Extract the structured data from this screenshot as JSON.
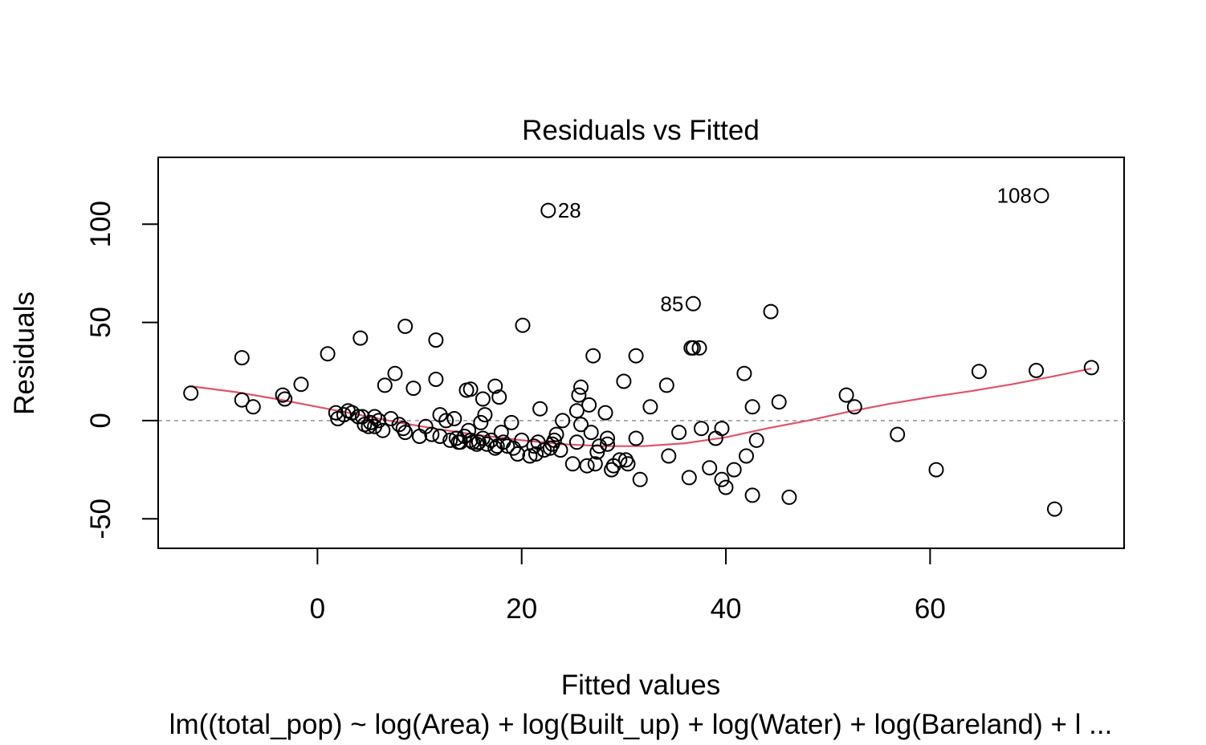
{
  "chart_data": {
    "type": "scatter",
    "title": "Residuals vs Fitted",
    "xlabel": "Fitted values",
    "ylabel": "Residuals",
    "subtitle": "lm((total_pop) ~ log(Area) + log(Built_up) + log(Water) + log(Bareland) + l ...",
    "xlim": [
      -15.6,
      79.0
    ],
    "ylim": [
      -65.0,
      134.0
    ],
    "x_ticks": [
      0,
      20,
      40,
      60
    ],
    "y_ticks": [
      -50,
      0,
      50,
      100
    ],
    "x_tick_labels": [
      "0",
      "20",
      "40",
      "60"
    ],
    "y_tick_labels": [
      "-50",
      "0",
      "50",
      "100"
    ],
    "reference_line_y": 0,
    "point_color": "#000000",
    "smooth_color": "#DF536B",
    "reference_line_color": "#999999",
    "labeled_points": [
      {
        "label": "28",
        "x": 22.6,
        "y": 107
      },
      {
        "label": "85",
        "x": 36.8,
        "y": 59.5
      },
      {
        "label": "108",
        "x": 70.9,
        "y": 114.5
      }
    ],
    "points": [
      [
        -12.4,
        14
      ],
      [
        -7.4,
        32
      ],
      [
        -7.4,
        10.5
      ],
      [
        -6.3,
        7
      ],
      [
        -3.4,
        13
      ],
      [
        -3.2,
        11
      ],
      [
        -1.6,
        18.5
      ],
      [
        1.0,
        34
      ],
      [
        1.8,
        4
      ],
      [
        2.0,
        1
      ],
      [
        2.6,
        3
      ],
      [
        3.0,
        5
      ],
      [
        3.4,
        4
      ],
      [
        4.0,
        2
      ],
      [
        4.2,
        42
      ],
      [
        4.4,
        2
      ],
      [
        4.6,
        -2
      ],
      [
        5.0,
        -3
      ],
      [
        5.2,
        -1
      ],
      [
        5.6,
        2
      ],
      [
        5.6,
        -3
      ],
      [
        6.0,
        0
      ],
      [
        6.4,
        -5
      ],
      [
        6.6,
        18
      ],
      [
        7.2,
        1
      ],
      [
        7.6,
        24
      ],
      [
        8.0,
        -2
      ],
      [
        8.4,
        -4
      ],
      [
        8.6,
        -6
      ],
      [
        8.6,
        48
      ],
      [
        9.4,
        16.5
      ],
      [
        10.0,
        -8
      ],
      [
        10.6,
        -3
      ],
      [
        11.2,
        -7
      ],
      [
        11.6,
        41
      ],
      [
        11.6,
        21
      ],
      [
        12.0,
        3
      ],
      [
        12.0,
        -8
      ],
      [
        12.6,
        0
      ],
      [
        13.0,
        -10
      ],
      [
        13.4,
        1
      ],
      [
        13.6,
        -9
      ],
      [
        13.8,
        -11
      ],
      [
        14.0,
        -11
      ],
      [
        14.4,
        -8
      ],
      [
        14.6,
        15.5
      ],
      [
        14.8,
        -5
      ],
      [
        15.0,
        -10
      ],
      [
        15.0,
        16
      ],
      [
        15.2,
        -11
      ],
      [
        15.6,
        -12
      ],
      [
        15.8,
        -11
      ],
      [
        16.0,
        -1
      ],
      [
        16.2,
        -9
      ],
      [
        16.2,
        11
      ],
      [
        16.4,
        3
      ],
      [
        16.6,
        -12
      ],
      [
        17.0,
        -10
      ],
      [
        17.4,
        -14
      ],
      [
        17.4,
        17.5
      ],
      [
        17.6,
        -13
      ],
      [
        17.8,
        12
      ],
      [
        18.0,
        -6
      ],
      [
        18.2,
        -11
      ],
      [
        18.6,
        -13
      ],
      [
        19.0,
        -1
      ],
      [
        19.2,
        -14
      ],
      [
        19.6,
        -17
      ],
      [
        20.0,
        -10
      ],
      [
        20.1,
        48.5
      ],
      [
        20.8,
        -18
      ],
      [
        21.2,
        -13
      ],
      [
        21.4,
        -17
      ],
      [
        21.6,
        -11
      ],
      [
        21.8,
        6
      ],
      [
        22.2,
        -15
      ],
      [
        22.8,
        -14
      ],
      [
        23.0,
        -12
      ],
      [
        23.2,
        -10
      ],
      [
        23.4,
        -7
      ],
      [
        23.8,
        -15
      ],
      [
        24.0,
        0
      ],
      [
        25.0,
        -22
      ],
      [
        25.4,
        -11
      ],
      [
        25.4,
        5
      ],
      [
        25.6,
        13
      ],
      [
        25.8,
        -2
      ],
      [
        25.8,
        17
      ],
      [
        26.4,
        -23
      ],
      [
        26.6,
        8
      ],
      [
        26.8,
        -6
      ],
      [
        27.0,
        33
      ],
      [
        27.2,
        -22
      ],
      [
        27.4,
        -16
      ],
      [
        27.6,
        -13
      ],
      [
        28.2,
        4
      ],
      [
        28.4,
        -9
      ],
      [
        28.4,
        -12
      ],
      [
        28.8,
        -25
      ],
      [
        29.0,
        -23
      ],
      [
        29.6,
        -20
      ],
      [
        30.0,
        20
      ],
      [
        30.2,
        -20
      ],
      [
        30.4,
        -22
      ],
      [
        31.2,
        -9
      ],
      [
        31.2,
        33
      ],
      [
        31.6,
        -30
      ],
      [
        32.6,
        7
      ],
      [
        34.2,
        18
      ],
      [
        34.4,
        -18
      ],
      [
        35.4,
        -6
      ],
      [
        36.4,
        -29
      ],
      [
        36.6,
        37
      ],
      [
        36.8,
        37
      ],
      [
        37.4,
        37
      ],
      [
        37.6,
        -4
      ],
      [
        38.4,
        -24
      ],
      [
        39.0,
        -9
      ],
      [
        39.6,
        -30
      ],
      [
        39.6,
        -4
      ],
      [
        40.0,
        -34
      ],
      [
        40.8,
        -25
      ],
      [
        41.8,
        24
      ],
      [
        42.0,
        -18
      ],
      [
        42.6,
        7
      ],
      [
        42.6,
        -38
      ],
      [
        43.0,
        -10
      ],
      [
        44.4,
        55.5
      ],
      [
        45.2,
        9.5
      ],
      [
        46.2,
        -39
      ],
      [
        51.8,
        13
      ],
      [
        52.6,
        7
      ],
      [
        56.8,
        -7
      ],
      [
        60.6,
        -25
      ],
      [
        64.8,
        25
      ],
      [
        70.4,
        25.5
      ],
      [
        72.2,
        -45
      ],
      [
        75.8,
        27
      ]
    ],
    "smooth": [
      [
        -12.4,
        17.5
      ],
      [
        -8,
        14.5
      ],
      [
        -4,
        11
      ],
      [
        0,
        7
      ],
      [
        4,
        3
      ],
      [
        8,
        -1
      ],
      [
        12,
        -4.5
      ],
      [
        16,
        -7.5
      ],
      [
        20,
        -10
      ],
      [
        24,
        -12
      ],
      [
        28,
        -13
      ],
      [
        32,
        -13
      ],
      [
        36,
        -11.5
      ],
      [
        40,
        -8.5
      ],
      [
        44,
        -4
      ],
      [
        48,
        0
      ],
      [
        52,
        4.5
      ],
      [
        56,
        8.5
      ],
      [
        60,
        12
      ],
      [
        64,
        15
      ],
      [
        68,
        18.5
      ],
      [
        72,
        22.5
      ],
      [
        75.8,
        26.5
      ]
    ]
  }
}
